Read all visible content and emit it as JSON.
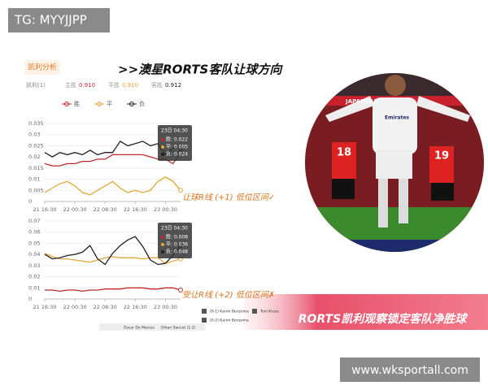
{
  "badge": "TG: MYYJJPP",
  "header": {
    "tab": "凯利分析",
    "headline": ">>澳星RORTS客队让球方向",
    "kelly": {
      "label": "凯利(1)",
      "items": [
        {
          "label": "主胜",
          "value": "0.910"
        },
        {
          "label": "平胜",
          "value": "0.910"
        },
        {
          "label": "客胜",
          "value": "0.912"
        }
      ]
    }
  },
  "chart_data": [
    {
      "type": "line",
      "grid": true,
      "x": [
        16.5,
        18.5,
        20.5,
        22.5,
        24.5,
        26.5,
        28.5,
        30.5,
        32.5,
        34.5,
        36.5,
        38.5,
        40.5,
        42.5,
        44.5,
        46.5,
        48.5,
        50.5,
        52.5
      ],
      "xlim": [
        16.5,
        52.5
      ],
      "xticks": [
        {
          "value": 16.5,
          "label": "21 16:30"
        },
        {
          "value": 24.5,
          "label": "22 00:30"
        },
        {
          "value": 32.5,
          "label": "22 08:30"
        },
        {
          "value": 40.5,
          "label": "22 16:30"
        },
        {
          "value": 48.5,
          "label": "23 00:30"
        }
      ],
      "ylim": [
        0,
        0.035
      ],
      "yticks": [
        0,
        0.005,
        0.01,
        0.015,
        0.02,
        0.025,
        0.03,
        0.035
      ],
      "series": [
        {
          "name": "胜",
          "color": "#c0282d",
          "values": [
            0.017,
            0.016,
            0.016,
            0.017,
            0.017,
            0.018,
            0.018,
            0.019,
            0.019,
            0.021,
            0.021,
            0.021,
            0.021,
            0.021,
            0.02,
            0.019,
            0.019,
            0.017,
            0.022
          ]
        },
        {
          "name": "平",
          "color": "#e3a63a",
          "values": [
            0.004,
            0.006,
            0.008,
            0.009,
            0.007,
            0.004,
            0.003,
            0.005,
            0.007,
            0.009,
            0.006,
            0.004,
            0.005,
            0.004,
            0.005,
            0.009,
            0.011,
            0.009,
            0.005
          ]
        },
        {
          "name": "负",
          "color": "#222222",
          "values": [
            0.022,
            0.02,
            0.022,
            0.021,
            0.022,
            0.021,
            0.023,
            0.021,
            0.022,
            0.022,
            0.027,
            0.025,
            0.026,
            0.027,
            0.025,
            0.026,
            0.021,
            0.024,
            0.024
          ]
        }
      ],
      "tooltip": {
        "title": "23日 04:30",
        "items": [
          "胜: 0.022",
          "平: 0.005",
          "负: 0.024"
        ]
      },
      "annotation": "让球R线 (+1) 低位区间✓"
    },
    {
      "type": "line",
      "grid": true,
      "x": [
        16.5,
        18.5,
        20.5,
        22.5,
        24.5,
        26.5,
        28.5,
        30.5,
        32.5,
        34.5,
        36.5,
        38.5,
        40.5,
        42.5,
        44.5,
        46.5,
        48.5,
        50.5,
        52.5
      ],
      "xlim": [
        16.5,
        52.5
      ],
      "xticks": [
        {
          "value": 16.5,
          "label": "21 16:30"
        },
        {
          "value": 24.5,
          "label": "22 00:30"
        },
        {
          "value": 32.5,
          "label": "22 08:30"
        },
        {
          "value": 40.5,
          "label": "22 16:30"
        },
        {
          "value": 48.5,
          "label": "23 00:30"
        }
      ],
      "ylim": [
        0,
        0.07
      ],
      "yticks": [
        0,
        0.01,
        0.02,
        0.03,
        0.04,
        0.05,
        0.06,
        0.07
      ],
      "series": [
        {
          "color": "#c0282d",
          "values": [
            0.008,
            0.008,
            0.007,
            0.008,
            0.008,
            0.007,
            0.008,
            0.008,
            0.009,
            0.009,
            0.009,
            0.01,
            0.01,
            0.01,
            0.009,
            0.009,
            0.01,
            0.01,
            0.008
          ]
        },
        {
          "color": "#e3a63a",
          "values": [
            0.041,
            0.038,
            0.036,
            0.036,
            0.035,
            0.034,
            0.033,
            0.035,
            0.037,
            0.038,
            0.037,
            0.037,
            0.037,
            0.036,
            0.037,
            0.037,
            0.032,
            0.034,
            0.036
          ]
        },
        {
          "color": "#222222",
          "values": [
            0.04,
            0.036,
            0.037,
            0.039,
            0.04,
            0.042,
            0.048,
            0.036,
            0.031,
            0.041,
            0.048,
            0.053,
            0.056,
            0.047,
            0.035,
            0.031,
            0.032,
            0.039,
            0.048
          ]
        }
      ],
      "tooltip": {
        "title": "23日 04:30",
        "items": [
          "胜: 0.008",
          "平: 0.036",
          "负: 0.048"
        ]
      },
      "annotation": "受让R线 (+2) 低位区间✗"
    }
  ],
  "photo": {
    "texts": [
      "JAPANCAR",
      "Emirates",
      "18",
      "19"
    ]
  },
  "banner": "RORTS凯利观察锁定客队净胜球",
  "footer": {
    "events": [
      "(0-1) Karim Benzema",
      "Toni Kroos",
      "(0-2) Karim Benzema"
    ],
    "players": [
      "Óscar De Marcos",
      "Oihan Sancet (1-2)"
    ]
  },
  "watermark": "www.wksportall.com"
}
